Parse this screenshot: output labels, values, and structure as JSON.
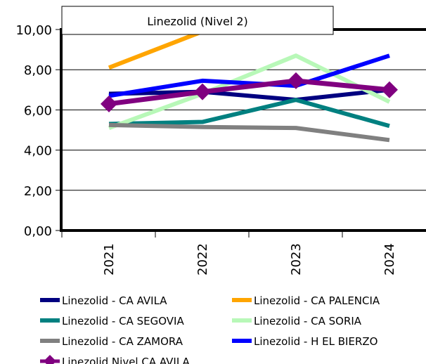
{
  "chart_data": {
    "type": "line",
    "title": "Linezolid (Nivel 2)",
    "categories": [
      "2021",
      "2022",
      "2023",
      "2024"
    ],
    "ylim": [
      0,
      10
    ],
    "yticks": [
      "0,00",
      "2,00",
      "4,00",
      "6,00",
      "8,00",
      "10,00"
    ],
    "grid": true,
    "legend_position": "bottom",
    "series": [
      {
        "name": "Linezolid -  CA AVILA",
        "color": "#000080",
        "values": [
          6.8,
          6.9,
          6.5,
          7.0
        ]
      },
      {
        "name": "Linezolid -  CA PALENCIA",
        "color": "#FFA500",
        "values": [
          8.1,
          9.9,
          null,
          null
        ]
      },
      {
        "name": "Linezolid -  CA SEGOVIA",
        "color": "#008080",
        "values": [
          5.3,
          5.4,
          6.5,
          5.2
        ]
      },
      {
        "name": "Linezolid -  CA SORIA",
        "color": "#B8F8B8",
        "values": [
          5.1,
          6.8,
          8.7,
          6.4
        ]
      },
      {
        "name": "Linezolid -  CA ZAMORA",
        "color": "#808080",
        "values": [
          5.25,
          5.15,
          5.1,
          4.5
        ]
      },
      {
        "name": "Linezolid -  H EL BIERZO",
        "color": "#0000FF",
        "values": [
          6.7,
          7.45,
          7.2,
          8.7
        ]
      },
      {
        "name": "Linezolid Nivel  CA AVILA",
        "color": "#800080",
        "values": [
          6.3,
          6.9,
          7.45,
          7.0
        ],
        "marker": "diamond"
      }
    ]
  }
}
